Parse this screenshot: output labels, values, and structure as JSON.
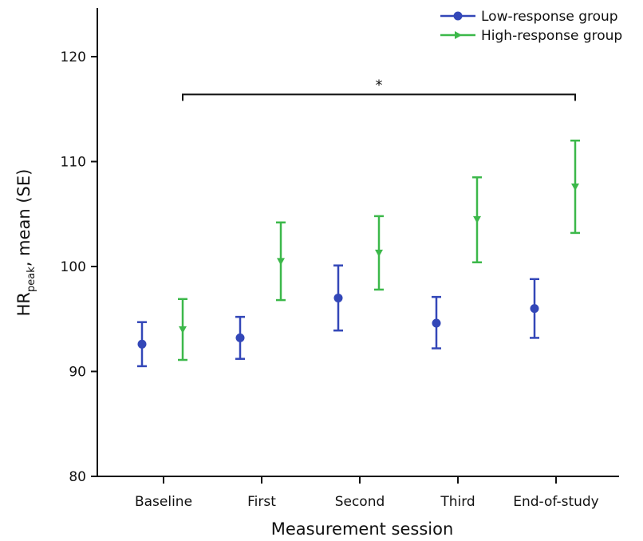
{
  "chart_data": {
    "type": "scatter",
    "categories": [
      "Baseline",
      "First",
      "Second",
      "Third",
      "End-of-study"
    ],
    "ylabel_main": "HR",
    "ylabel_sub": "peak",
    "ylabel_rest": ", mean (SE)",
    "xlabel": "Measurement session",
    "ylim": [
      80,
      125
    ],
    "yticks": [
      80,
      90,
      100,
      110,
      120
    ],
    "grid": false,
    "legend_position": "top-right",
    "series": [
      {
        "name": "Low-response group",
        "color": "#3347b8",
        "marker": "circle",
        "values": [
          92.6,
          93.2,
          97.0,
          94.6,
          96.0
        ],
        "lower": [
          90.5,
          91.2,
          93.9,
          92.2,
          93.2
        ],
        "upper": [
          94.7,
          95.2,
          100.1,
          97.1,
          98.8
        ]
      },
      {
        "name": "High-response group",
        "color": "#3cb84a",
        "marker": "triangle-down",
        "values": [
          94.0,
          100.5,
          101.3,
          104.5,
          107.6
        ],
        "lower": [
          91.1,
          96.8,
          97.8,
          100.4,
          103.2
        ],
        "upper": [
          96.9,
          104.2,
          104.8,
          108.5,
          112.0
        ]
      }
    ],
    "annotations": [
      {
        "text": "*",
        "from": "Baseline",
        "to": "End-of-study",
        "y": 116.4
      }
    ]
  }
}
